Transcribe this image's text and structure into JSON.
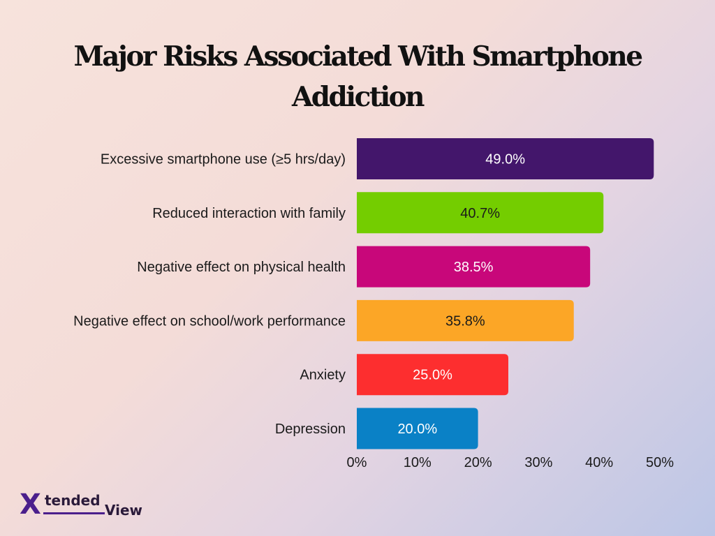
{
  "chart_data": {
    "type": "bar",
    "orientation": "horizontal",
    "title_lines": [
      "Major Risks Associated With Smartphone",
      "Addiction"
    ],
    "categories": [
      "Excessive smartphone use (≥5 hrs/day)",
      "Reduced interaction with family",
      "Negative effect on physical health",
      "Negative effect on school/work performance",
      "Anxiety",
      "Depression"
    ],
    "values": [
      49.0,
      40.7,
      38.5,
      35.8,
      25.0,
      20.0
    ],
    "value_labels": [
      "49.0%",
      "40.7%",
      "38.5%",
      "35.8%",
      "25.0%",
      "20.0%"
    ],
    "bar_colors": [
      "#43166b",
      "#74cd00",
      "#c8077a",
      "#fca626",
      "#fd2e2f",
      "#0a81c6"
    ],
    "label_colors": [
      "#ffffff",
      "#1a1a1a",
      "#ffffff",
      "#1a1a1a",
      "#ffffff",
      "#ffffff"
    ],
    "xlim": [
      0,
      50
    ],
    "xticks": [
      0,
      10,
      20,
      30,
      40,
      50
    ],
    "xtick_labels": [
      "0%",
      "10%",
      "20%",
      "30%",
      "40%",
      "50%"
    ],
    "grid": false,
    "legend": "none"
  },
  "logo": {
    "mark": "X",
    "text_part1": "tended",
    "text_part2": "View",
    "color": "#4b1f8c"
  }
}
